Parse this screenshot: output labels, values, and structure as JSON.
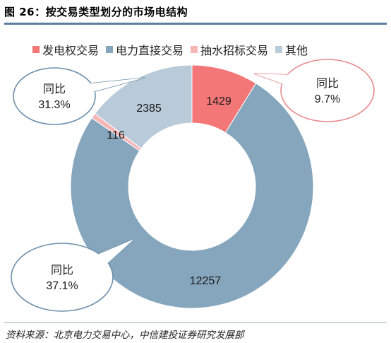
{
  "header": {
    "title": "图 26：按交易类型划分的市场电结构"
  },
  "footer": {
    "source": "资料来源：北京电力交易中心，中信建投证券研究发展部"
  },
  "chart_data": {
    "type": "pie",
    "variant": "donut",
    "title": "图 26：按交易类型划分的市场电结构",
    "legend_position": "top",
    "series": [
      {
        "name": "发电权交易",
        "value": 1429,
        "color": "#f37777"
      },
      {
        "name": "电力直接交易",
        "value": 12257,
        "color": "#86a6bd"
      },
      {
        "name": "抽水招标交易",
        "value": 116,
        "color": "#f7b6b6"
      },
      {
        "name": "其他",
        "value": 2385,
        "color": "#b9cbd9"
      }
    ],
    "callouts": [
      {
        "series": "发电权交易",
        "lines": [
          "同比",
          "9.7%"
        ],
        "border_color": "#e8898c"
      },
      {
        "series": "其他",
        "lines": [
          "同比",
          "31.3%"
        ],
        "border_color": "#6d8faa"
      },
      {
        "series": "电力直接交易",
        "lines": [
          "同比",
          "37.1%"
        ],
        "border_color": "#6d8faa"
      }
    ]
  }
}
